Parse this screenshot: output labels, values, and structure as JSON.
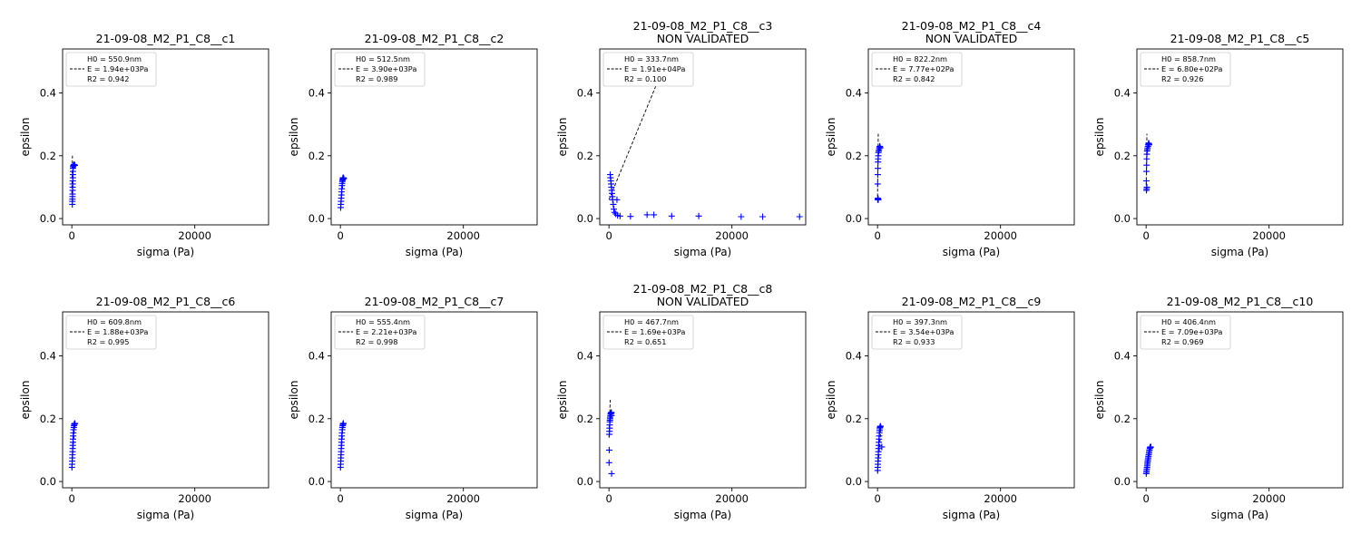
{
  "figure": {
    "xlabel": "sigma (Pa)",
    "ylabel": "epsilon",
    "x_ticks": [
      0,
      20000
    ],
    "y_ticks": [
      0.0,
      0.2,
      0.4
    ],
    "xlim": [
      -1500,
      32000
    ],
    "ylim": [
      -0.02,
      0.54
    ],
    "point_color": "#0000ff",
    "fit_color": "#000000"
  },
  "chart_data": [
    {
      "type": "scatter",
      "title": "21-09-08_M2_P1_C8__c1",
      "subtitle": "",
      "legend": {
        "h0": "H0 = 550.9nm",
        "e": "E = 1.94e+03Pa",
        "r2": "R2 = 0.942"
      },
      "E_pa": 1940,
      "R2": 0.942,
      "points": [
        [
          80,
          0.045
        ],
        [
          90,
          0.055
        ],
        [
          100,
          0.062
        ],
        [
          110,
          0.07
        ],
        [
          120,
          0.078
        ],
        [
          130,
          0.09
        ],
        [
          140,
          0.1
        ],
        [
          150,
          0.11
        ],
        [
          160,
          0.12
        ],
        [
          170,
          0.13
        ],
        [
          180,
          0.14
        ],
        [
          190,
          0.15
        ],
        [
          200,
          0.16
        ],
        [
          210,
          0.165
        ],
        [
          250,
          0.168
        ],
        [
          300,
          0.17
        ],
        [
          350,
          0.172
        ],
        [
          400,
          0.171
        ],
        [
          450,
          0.17
        ],
        [
          500,
          0.169
        ]
      ],
      "fit_line": [
        [
          0,
          0.08
        ],
        [
          100,
          0.2
        ]
      ]
    },
    {
      "type": "scatter",
      "title": "21-09-08_M2_P1_C8__c2",
      "subtitle": "",
      "legend": {
        "h0": "H0 = 512.5nm",
        "e": "E = 3.90e+03Pa",
        "r2": "R2 = 0.989"
      },
      "E_pa": 3900,
      "R2": 0.989,
      "points": [
        [
          50,
          0.035
        ],
        [
          80,
          0.045
        ],
        [
          110,
          0.055
        ],
        [
          140,
          0.065
        ],
        [
          170,
          0.075
        ],
        [
          200,
          0.085
        ],
        [
          230,
          0.095
        ],
        [
          260,
          0.105
        ],
        [
          290,
          0.112
        ],
        [
          320,
          0.118
        ],
        [
          350,
          0.122
        ],
        [
          380,
          0.125
        ],
        [
          410,
          0.128
        ],
        [
          440,
          0.13
        ],
        [
          470,
          0.13
        ],
        [
          500,
          0.129
        ],
        [
          530,
          0.128
        ],
        [
          560,
          0.127
        ]
      ],
      "fit_line": [
        [
          0,
          0.03
        ],
        [
          550,
          0.14
        ]
      ]
    },
    {
      "type": "scatter",
      "title": "21-09-08_M2_P1_C8__c3",
      "subtitle": "NON VALIDATED",
      "legend": {
        "h0": "H0 = 333.7nm",
        "e": "E = 1.91e+04Pa",
        "r2": "R2 = 0.100"
      },
      "E_pa": 19100,
      "R2": 0.1,
      "points": [
        [
          200,
          0.14
        ],
        [
          250,
          0.13
        ],
        [
          300,
          0.12
        ],
        [
          350,
          0.11
        ],
        [
          400,
          0.1
        ],
        [
          450,
          0.09
        ],
        [
          500,
          0.08
        ],
        [
          550,
          0.07
        ],
        [
          600,
          0.06
        ],
        [
          700,
          0.045
        ],
        [
          800,
          0.03
        ],
        [
          900,
          0.02
        ],
        [
          1100,
          0.015
        ],
        [
          1400,
          0.01
        ],
        [
          1800,
          0.008
        ],
        [
          1300,
          0.06
        ],
        [
          3500,
          0.007
        ],
        [
          6200,
          0.012
        ],
        [
          7300,
          0.012
        ],
        [
          10200,
          0.008
        ],
        [
          14600,
          0.008
        ],
        [
          21500,
          0.006
        ],
        [
          25000,
          0.006
        ],
        [
          31000,
          0.006
        ]
      ],
      "fit_line": [
        [
          0,
          0.06
        ],
        [
          8000,
          0.44
        ]
      ]
    },
    {
      "type": "scatter",
      "title": "21-09-08_M2_P1_C8__c4",
      "subtitle": "NON VALIDATED",
      "legend": {
        "h0": "H0 = 822.2nm",
        "e": "E = 7.77e+02Pa",
        "r2": "R2 = 0.842"
      },
      "E_pa": 777,
      "R2": 0.842,
      "points": [
        [
          30,
          0.06
        ],
        [
          60,
          0.065
        ],
        [
          90,
          0.062
        ],
        [
          120,
          0.06
        ],
        [
          20,
          0.11
        ],
        [
          40,
          0.14
        ],
        [
          60,
          0.16
        ],
        [
          80,
          0.18
        ],
        [
          100,
          0.19
        ],
        [
          120,
          0.2
        ],
        [
          150,
          0.21
        ],
        [
          200,
          0.215
        ],
        [
          250,
          0.22
        ],
        [
          300,
          0.225
        ],
        [
          350,
          0.23
        ],
        [
          400,
          0.228
        ],
        [
          450,
          0.225
        ]
      ],
      "fit_line": [
        [
          0,
          0.07
        ],
        [
          120,
          0.27
        ]
      ]
    },
    {
      "type": "scatter",
      "title": "21-09-08_M2_P1_C8__c5",
      "subtitle": "",
      "legend": {
        "h0": "H0 = 858.7nm",
        "e": "E = 6.80e+02Pa",
        "r2": "R2 = 0.926"
      },
      "E_pa": 680,
      "R2": 0.926,
      "points": [
        [
          50,
          0.09
        ],
        [
          90,
          0.095
        ],
        [
          130,
          0.1
        ],
        [
          40,
          0.12
        ],
        [
          60,
          0.15
        ],
        [
          80,
          0.17
        ],
        [
          100,
          0.19
        ],
        [
          130,
          0.205
        ],
        [
          160,
          0.215
        ],
        [
          200,
          0.22
        ],
        [
          250,
          0.225
        ],
        [
          300,
          0.23
        ],
        [
          350,
          0.235
        ],
        [
          400,
          0.24
        ],
        [
          450,
          0.238
        ],
        [
          500,
          0.235
        ]
      ],
      "fit_line": [
        [
          0,
          0.09
        ],
        [
          130,
          0.27
        ]
      ]
    },
    {
      "type": "scatter",
      "title": "21-09-08_M2_P1_C8__c6",
      "subtitle": "",
      "legend": {
        "h0": "H0 = 609.8nm",
        "e": "E = 1.88e+03Pa",
        "r2": "R2 = 0.995"
      },
      "E_pa": 1880,
      "R2": 0.995,
      "points": [
        [
          20,
          0.045
        ],
        [
          40,
          0.055
        ],
        [
          60,
          0.065
        ],
        [
          80,
          0.075
        ],
        [
          100,
          0.085
        ],
        [
          120,
          0.095
        ],
        [
          140,
          0.105
        ],
        [
          160,
          0.115
        ],
        [
          180,
          0.125
        ],
        [
          200,
          0.135
        ],
        [
          220,
          0.145
        ],
        [
          250,
          0.155
        ],
        [
          280,
          0.165
        ],
        [
          320,
          0.172
        ],
        [
          360,
          0.178
        ],
        [
          400,
          0.182
        ],
        [
          440,
          0.184
        ],
        [
          480,
          0.185
        ],
        [
          520,
          0.184
        ]
      ],
      "fit_line": [
        [
          0,
          0.04
        ],
        [
          500,
          0.19
        ]
      ]
    },
    {
      "type": "scatter",
      "title": "21-09-08_M2_P1_C8__c7",
      "subtitle": "",
      "legend": {
        "h0": "H0 = 555.4nm",
        "e": "E = 2.21e+03Pa",
        "r2": "R2 = 0.998"
      },
      "E_pa": 2210,
      "R2": 0.998,
      "points": [
        [
          20,
          0.045
        ],
        [
          40,
          0.055
        ],
        [
          60,
          0.065
        ],
        [
          80,
          0.075
        ],
        [
          100,
          0.085
        ],
        [
          120,
          0.095
        ],
        [
          140,
          0.105
        ],
        [
          160,
          0.115
        ],
        [
          180,
          0.125
        ],
        [
          200,
          0.135
        ],
        [
          230,
          0.145
        ],
        [
          260,
          0.155
        ],
        [
          290,
          0.165
        ],
        [
          330,
          0.172
        ],
        [
          370,
          0.178
        ],
        [
          410,
          0.182
        ],
        [
          450,
          0.184
        ],
        [
          490,
          0.185
        ]
      ],
      "fit_line": [
        [
          0,
          0.04
        ],
        [
          450,
          0.19
        ]
      ]
    },
    {
      "type": "scatter",
      "title": "21-09-08_M2_P1_C8__c8",
      "subtitle": "NON VALIDATED",
      "legend": {
        "h0": "H0 = 467.7nm",
        "e": "E = 1.69e+03Pa",
        "r2": "R2 = 0.651"
      },
      "E_pa": 1690,
      "R2": 0.651,
      "points": [
        [
          20,
          0.06
        ],
        [
          40,
          0.1
        ],
        [
          60,
          0.15
        ],
        [
          80,
          0.16
        ],
        [
          100,
          0.17
        ],
        [
          120,
          0.18
        ],
        [
          140,
          0.19
        ],
        [
          160,
          0.195
        ],
        [
          180,
          0.2
        ],
        [
          200,
          0.205
        ],
        [
          240,
          0.21
        ],
        [
          280,
          0.215
        ],
        [
          320,
          0.218
        ],
        [
          360,
          0.22
        ],
        [
          400,
          0.218
        ],
        [
          420,
          0.21
        ],
        [
          430,
          0.025
        ]
      ],
      "fit_line": [
        [
          0,
          0.14
        ],
        [
          200,
          0.26
        ]
      ]
    },
    {
      "type": "scatter",
      "title": "21-09-08_M2_P1_C8__c9",
      "subtitle": "",
      "legend": {
        "h0": "H0 = 397.3nm",
        "e": "E = 3.54e+03Pa",
        "r2": "R2 = 0.933"
      },
      "E_pa": 3540,
      "R2": 0.933,
      "points": [
        [
          20,
          0.035
        ],
        [
          40,
          0.045
        ],
        [
          60,
          0.055
        ],
        [
          80,
          0.065
        ],
        [
          100,
          0.075
        ],
        [
          120,
          0.085
        ],
        [
          140,
          0.095
        ],
        [
          160,
          0.105
        ],
        [
          180,
          0.115
        ],
        [
          210,
          0.125
        ],
        [
          240,
          0.135
        ],
        [
          270,
          0.145
        ],
        [
          300,
          0.155
        ],
        [
          330,
          0.162
        ],
        [
          360,
          0.168
        ],
        [
          400,
          0.172
        ],
        [
          440,
          0.175
        ],
        [
          480,
          0.176
        ],
        [
          700,
          0.11
        ]
      ],
      "fit_line": [
        [
          0,
          0.03
        ],
        [
          600,
          0.18
        ]
      ]
    },
    {
      "type": "scatter",
      "title": "21-09-08_M2_P1_C8__c10",
      "subtitle": "",
      "legend": {
        "h0": "H0 = 406.4nm",
        "e": "E = 7.09e+03Pa",
        "r2": "R2 = 0.969"
      },
      "E_pa": 7090,
      "R2": 0.969,
      "points": [
        [
          30,
          0.025
        ],
        [
          60,
          0.03
        ],
        [
          90,
          0.035
        ],
        [
          120,
          0.04
        ],
        [
          150,
          0.045
        ],
        [
          180,
          0.05
        ],
        [
          210,
          0.055
        ],
        [
          240,
          0.06
        ],
        [
          270,
          0.065
        ],
        [
          300,
          0.07
        ],
        [
          340,
          0.075
        ],
        [
          380,
          0.08
        ],
        [
          420,
          0.085
        ],
        [
          460,
          0.09
        ],
        [
          500,
          0.095
        ],
        [
          550,
          0.1
        ],
        [
          600,
          0.105
        ],
        [
          650,
          0.108
        ],
        [
          700,
          0.11
        ],
        [
          750,
          0.109
        ]
      ],
      "fit_line": [
        [
          0,
          0.02
        ],
        [
          800,
          0.12
        ]
      ]
    }
  ]
}
